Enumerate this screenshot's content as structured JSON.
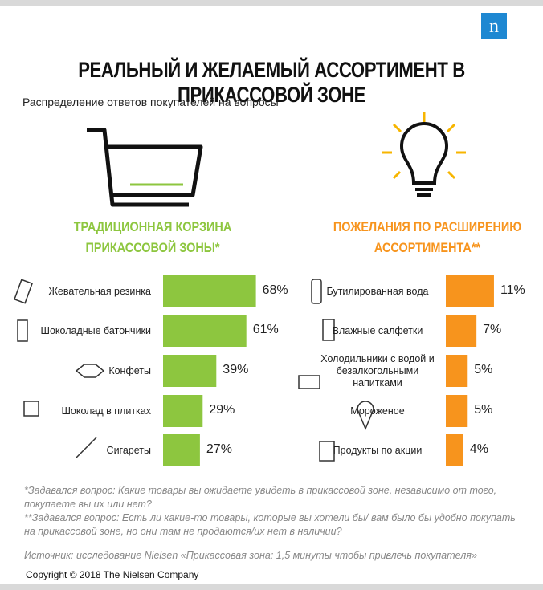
{
  "header": {
    "title": "РЕАЛЬНЫЙ И ЖЕЛАЕМЫЙ АССОРТИМЕНТ В ПРИКАССОВОЙ ЗОНЕ",
    "subtitle": "Распределение ответов покупателей на вопросы",
    "logo": "n"
  },
  "chart_data": [
    {
      "type": "bar",
      "orientation": "horizontal",
      "title": [
        "ТРАДИЦИОННАЯ КОРЗИНА",
        "ПРИКАССОВОЙ ЗОНЫ*"
      ],
      "color": "#8dc63f",
      "categories": [
        "Жевательная резинка",
        "Шоколадные батончики",
        "Конфеты",
        "Шоколад в плитках",
        "Сигареты"
      ],
      "values": [
        68,
        61,
        39,
        29,
        27
      ],
      "value_labels": [
        "68%",
        "61%",
        "39%",
        "29%",
        "27%"
      ]
    },
    {
      "type": "bar",
      "orientation": "horizontal",
      "title": [
        "ПОЖЕЛАНИЯ ПО РАСШИРЕНИЮ",
        "АССОРТИМЕНТА**"
      ],
      "color": "#f7941d",
      "categories": [
        "Бутилированная вода",
        "Влажные салфетки",
        "Холодильники с водой и безалкогольными напитками",
        "Мороженое",
        "Продукты по акции"
      ],
      "values": [
        11,
        7,
        5,
        5,
        4
      ],
      "value_labels": [
        "11%",
        "7%",
        "5%",
        "5%",
        "4%"
      ]
    }
  ],
  "footnotes": [
    "*Задавался вопрос: Какие товары вы ожидаете увидеть в прикассовой зоне, независимо от того, покупаете вы их или нет?",
    "**Задавался вопрос: Есть ли какие-то товары, которые вы хотели бы/ вам было бы удобно покупать на прикассовой зоне, но они там не продаются/их нет в наличии?"
  ],
  "source": "Источник: исследование Nielsen «Прикассовая зона: 1,5 минуты чтобы привлечь покупателя»",
  "copyright": "Copyright © 2018 The Nielsen Company"
}
